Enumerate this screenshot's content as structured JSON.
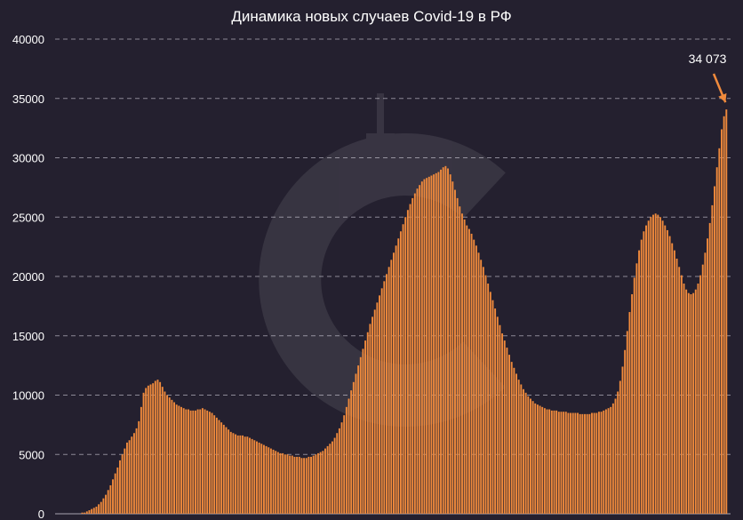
{
  "chart_data": {
    "type": "bar",
    "title": "Динамика новых случаев Covid-19 в РФ",
    "xlabel": "",
    "ylabel": "",
    "ylim": [
      0,
      40000
    ],
    "y_ticks": [
      0,
      5000,
      10000,
      15000,
      20000,
      25000,
      30000,
      35000,
      40000
    ],
    "grid": true,
    "bar_color": "#f08a3c",
    "annotation": {
      "text": "34 073",
      "value": 34073,
      "arrow_color": "#f08a3c"
    },
    "series": [
      {
        "values": [
          0,
          0,
          0,
          0,
          0,
          0,
          0,
          0,
          0,
          0,
          100,
          100,
          200,
          300,
          400,
          500,
          600,
          800,
          1000,
          1300,
          1600,
          2000,
          2400,
          2900,
          3400,
          3900,
          4500,
          5000,
          5500,
          6000,
          6200,
          6500,
          6800,
          7200,
          7800,
          9000,
          10200,
          10600,
          10800,
          10900,
          11000,
          11200,
          11300,
          11100,
          10700,
          10300,
          10000,
          9800,
          9600,
          9400,
          9200,
          9100,
          9000,
          8900,
          8800,
          8800,
          8700,
          8700,
          8700,
          8800,
          8800,
          8900,
          8800,
          8700,
          8600,
          8500,
          8300,
          8100,
          7900,
          7700,
          7500,
          7300,
          7100,
          6900,
          6800,
          6700,
          6600,
          6600,
          6600,
          6500,
          6500,
          6400,
          6300,
          6200,
          6100,
          6000,
          5900,
          5800,
          5700,
          5600,
          5500,
          5400,
          5300,
          5200,
          5100,
          5100,
          5000,
          5000,
          4900,
          4900,
          4800,
          4800,
          4800,
          4700,
          4700,
          4700,
          4800,
          4800,
          4900,
          5000,
          5100,
          5200,
          5300,
          5500,
          5700,
          5900,
          6100,
          6400,
          6800,
          7200,
          7700,
          8300,
          9000,
          9700,
          10400,
          11100,
          11800,
          12500,
          13200,
          13900,
          14600,
          15300,
          16000,
          16600,
          17200,
          17800,
          18400,
          19000,
          19600,
          20200,
          20800,
          21400,
          22000,
          22600,
          23200,
          23800,
          24400,
          25000,
          25600,
          26100,
          26600,
          27000,
          27400,
          27700,
          28000,
          28200,
          28300,
          28400,
          28500,
          28600,
          28700,
          28800,
          29000,
          29200,
          29300,
          29100,
          28600,
          28000,
          27300,
          26600,
          25900,
          25300,
          24800,
          24300,
          24000,
          23600,
          23100,
          22600,
          22000,
          21400,
          20800,
          20100,
          19400,
          18700,
          18000,
          17300,
          16600,
          15900,
          15200,
          14600,
          14000,
          13400,
          12800,
          12300,
          11800,
          11300,
          10900,
          10500,
          10200,
          9900,
          9700,
          9500,
          9300,
          9200,
          9100,
          9000,
          8900,
          8800,
          8800,
          8700,
          8700,
          8700,
          8600,
          8600,
          8600,
          8600,
          8500,
          8500,
          8500,
          8500,
          8500,
          8400,
          8400,
          8400,
          8400,
          8400,
          8500,
          8500,
          8500,
          8600,
          8600,
          8700,
          8800,
          8900,
          9000,
          9300,
          9700,
          10300,
          11200,
          12400,
          13800,
          15400,
          17000,
          18500,
          19900,
          21100,
          22200,
          23100,
          23800,
          24300,
          24700,
          25000,
          25200,
          25300,
          25200,
          25000,
          24700,
          24300,
          23900,
          23400,
          22800,
          22200,
          21500,
          20800,
          20100,
          19400,
          18900,
          18600,
          18500,
          18600,
          18900,
          19400,
          20100,
          21000,
          22000,
          23200,
          24500,
          26000,
          27600,
          29200,
          30800,
          32400,
          33500,
          34073
        ]
      }
    ]
  }
}
